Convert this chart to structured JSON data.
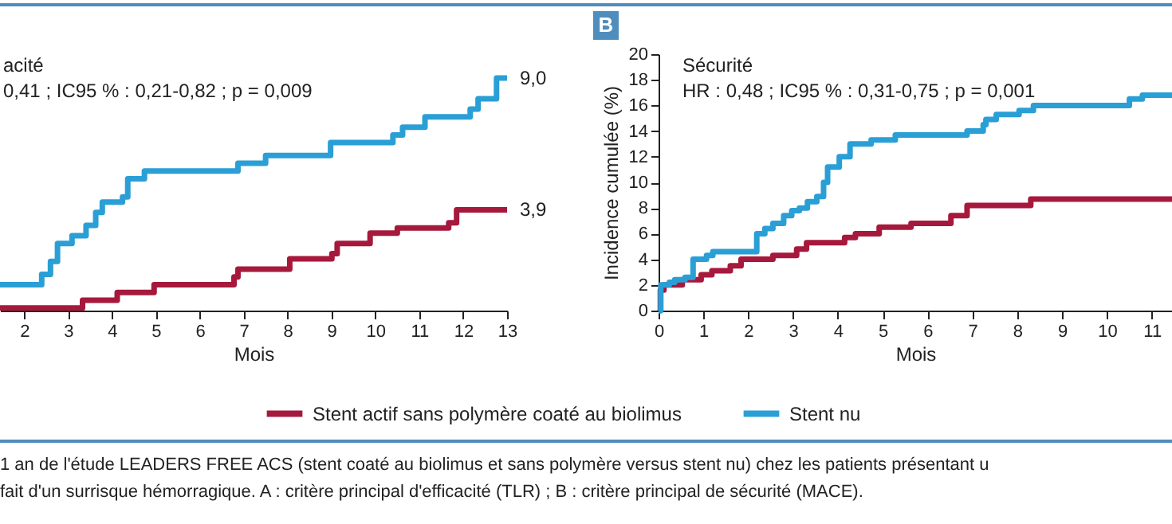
{
  "chart_data": [
    {
      "type": "step",
      "xlabel": "Mois",
      "xlim": [
        1.45,
        13
      ],
      "xticks": [
        2,
        3,
        4,
        5,
        6,
        7,
        8,
        9,
        10,
        11,
        12,
        13
      ],
      "tick_labels": "x",
      "grid": false,
      "legend": "bottom",
      "line_style": "solid",
      "marker": "none",
      "annotations": [
        "acité",
        "0,41 ; IC95 % : 0,21-0,82 ; p = 0,009"
      ],
      "series": [
        {
          "name": "Stent actif sans polymère coaté au biolimus",
          "color": "#a6193c",
          "x": [
            1.45,
            3.33,
            4.12,
            4.96,
            6.78,
            6.87,
            8.05,
            9.01,
            9.13,
            9.88,
            10.5,
            11.67,
            11.85,
            13
          ],
          "values": [
            0.1,
            0.4,
            0.7,
            1.0,
            1.3,
            1.6,
            2.0,
            2.2,
            2.6,
            3.0,
            3.2,
            3.4,
            3.9,
            3.9
          ],
          "value_labels": [
            null,
            null,
            null,
            null,
            null,
            null,
            null,
            null,
            null,
            null,
            null,
            null,
            null,
            "3,9"
          ]
        },
        {
          "name": "Stent nu",
          "color": "#2a9fd6",
          "x": [
            1.45,
            2.4,
            2.6,
            2.76,
            3.09,
            3.41,
            3.63,
            3.78,
            4.24,
            4.36,
            4.74,
            6.87,
            7.5,
            8.98,
            10.4,
            10.62,
            11.13,
            12.16,
            12.34,
            12.76,
            13
          ],
          "values": [
            1.0,
            1.4,
            1.9,
            2.6,
            2.9,
            3.3,
            3.8,
            4.2,
            4.4,
            5.1,
            5.4,
            5.7,
            6.0,
            6.5,
            6.8,
            7.1,
            7.5,
            7.8,
            8.2,
            9.0,
            9.0
          ],
          "value_labels": [
            null,
            null,
            null,
            null,
            null,
            null,
            null,
            null,
            null,
            null,
            null,
            null,
            null,
            null,
            null,
            null,
            null,
            null,
            null,
            null,
            "9,0"
          ]
        }
      ]
    },
    {
      "type": "step",
      "title": "B",
      "xlabel": "Mois",
      "ylabel": "Incidence cumulée (%)",
      "xlim": [
        0,
        11.45
      ],
      "xticks": [
        0,
        1,
        2,
        3,
        4,
        5,
        6,
        7,
        8,
        9,
        10,
        11
      ],
      "ylim": [
        0,
        20
      ],
      "yticks": [
        0,
        2,
        4,
        6,
        8,
        10,
        12,
        14,
        16,
        18,
        20
      ],
      "grid": false,
      "line_style": "solid",
      "marker": "none",
      "annotations": [
        "Sécurité",
        "HR : 0,48 ; IC95 % : 0,31-0,75 ; p = 0,001"
      ],
      "series": [
        {
          "color": "#a6193c",
          "x": [
            0,
            0.04,
            0.12,
            0.53,
            0.95,
            1.19,
            1.6,
            1.84,
            2.55,
            3.08,
            3.3,
            4.15,
            4.39,
            4.92,
            5.63,
            6.52,
            6.88,
            8.3,
            11.45
          ],
          "values": [
            0,
            1.6,
            2.0,
            2.4,
            2.8,
            3.1,
            3.5,
            4.0,
            4.3,
            4.8,
            5.3,
            5.7,
            6.0,
            6.5,
            6.8,
            7.4,
            8.2,
            8.7,
            8.7
          ]
        },
        {
          "color": "#2a9fd6",
          "x": [
            0,
            0.05,
            0.24,
            0.36,
            0.59,
            0.77,
            1.07,
            1.21,
            2.19,
            2.37,
            2.55,
            2.79,
            2.97,
            3.14,
            3.32,
            3.53,
            3.68,
            3.77,
            4.03,
            4.27,
            4.74,
            5.28,
            6.88,
            7.24,
            7.3,
            7.53,
            8.04,
            8.36,
            10.5,
            10.79,
            11.45
          ],
          "values": [
            0,
            2.0,
            2.2,
            2.4,
            2.6,
            4.0,
            4.3,
            4.6,
            6.0,
            6.4,
            6.8,
            7.4,
            7.8,
            8.0,
            8.5,
            8.9,
            10.0,
            11.2,
            12.0,
            13.0,
            13.3,
            13.7,
            14.0,
            14.5,
            14.9,
            15.3,
            15.6,
            16.0,
            16.5,
            16.8,
            16.8
          ]
        }
      ]
    },
    {
      "type": "other",
      "annotations": [
        "1 an de l'étude LEADERS FREE ACS (stent coaté au biolimus et sans polymère versus stent nu) chez les patients présentant u",
        "fait d'un surrisque hémorragique. A : critère principal d'efficacité (TLR) ; B : critère principal de sécurité (MACE)."
      ]
    }
  ]
}
